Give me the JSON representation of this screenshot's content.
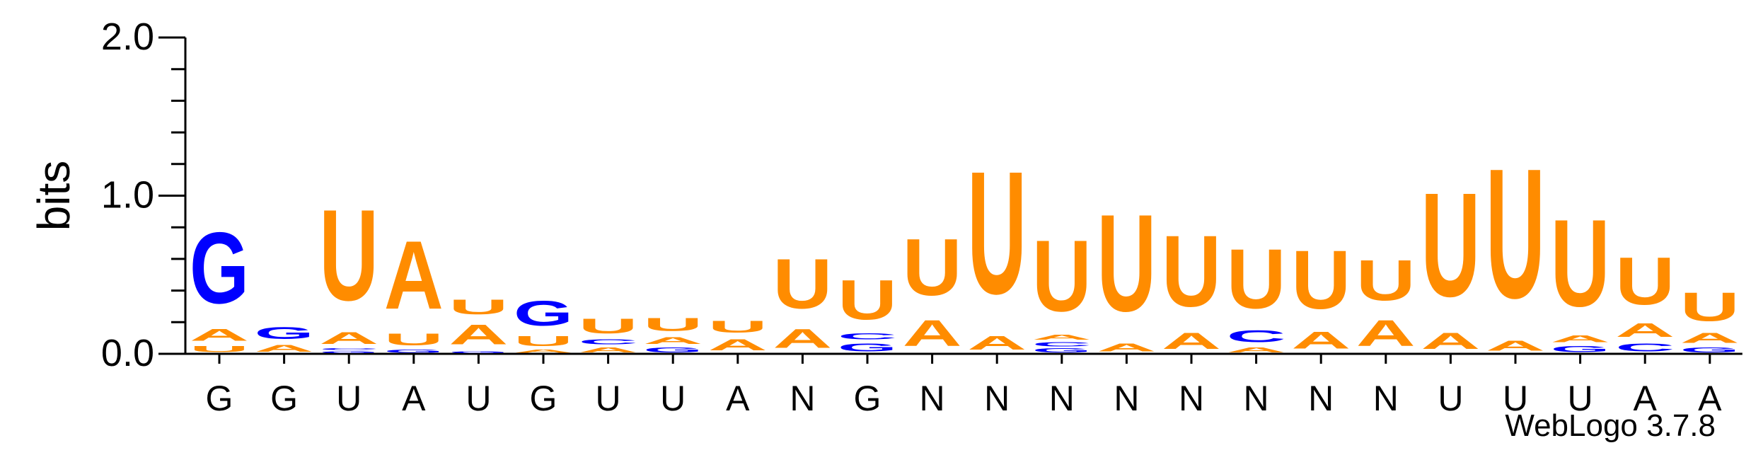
{
  "credit": "WebLogo 3.7.8",
  "colors": {
    "A": "#ff8c00",
    "U": "#ff8c00",
    "G": "#0000ff",
    "C": "#0000ff"
  },
  "chart_data": {
    "type": "sequence-logo",
    "ylabel": "bits",
    "ylim": [
      0,
      2.0
    ],
    "yticks": [
      "0.0",
      "1.0",
      "2.0"
    ],
    "x_labels": [
      "G",
      "G",
      "U",
      "A",
      "U",
      "G",
      "U",
      "U",
      "A",
      "N",
      "G",
      "N",
      "N",
      "N",
      "N",
      "N",
      "N",
      "N",
      "N",
      "U",
      "U",
      "U",
      "A",
      "A"
    ],
    "columns": [
      [
        {
          "b": "U",
          "h": 0.06
        },
        {
          "b": "A",
          "h": 0.12
        },
        {
          "b": "G",
          "h": 0.72
        }
      ],
      [
        {
          "b": "A",
          "h": 0.07
        },
        {
          "b": "G",
          "h": 0.12
        }
      ],
      [
        {
          "b": "G",
          "h": 0.02
        },
        {
          "b": "C",
          "h": 0.02
        },
        {
          "b": "A",
          "h": 0.12
        },
        {
          "b": "U",
          "h": 0.92
        }
      ],
      [
        {
          "b": "G",
          "h": 0.03
        },
        {
          "b": "U",
          "h": 0.12
        },
        {
          "b": "A",
          "h": 0.69
        }
      ],
      [
        {
          "b": "G",
          "h": 0.02
        },
        {
          "b": "A",
          "h": 0.2
        },
        {
          "b": "U",
          "h": 0.15
        }
      ],
      [
        {
          "b": "A",
          "h": 0.03
        },
        {
          "b": "U",
          "h": 0.1
        },
        {
          "b": "G",
          "h": 0.25
        }
      ],
      [
        {
          "b": "A",
          "h": 0.05
        },
        {
          "b": "C",
          "h": 0.05
        },
        {
          "b": "U",
          "h": 0.15
        }
      ],
      [
        {
          "b": "G",
          "h": 0.05
        },
        {
          "b": "A",
          "h": 0.07
        },
        {
          "b": "U",
          "h": 0.13
        }
      ],
      [
        {
          "b": "A",
          "h": 0.11
        },
        {
          "b": "U",
          "h": 0.12
        }
      ],
      [
        {
          "b": "A",
          "h": 0.19
        },
        {
          "b": "U",
          "h": 0.5
        }
      ],
      [
        {
          "b": "G",
          "h": 0.08
        },
        {
          "b": "C",
          "h": 0.06
        },
        {
          "b": "U",
          "h": 0.4
        }
      ],
      [
        {
          "b": "A",
          "h": 0.26
        },
        {
          "b": "U",
          "h": 0.57
        }
      ],
      [
        {
          "b": "A",
          "h": 0.14
        },
        {
          "b": "U",
          "h": 1.24
        }
      ],
      [
        {
          "b": "G",
          "h": 0.04
        },
        {
          "b": "C",
          "h": 0.04
        },
        {
          "b": "A",
          "h": 0.05
        },
        {
          "b": "U",
          "h": 0.72
        }
      ],
      [
        {
          "b": "A",
          "h": 0.08
        },
        {
          "b": "U",
          "h": 0.98
        }
      ],
      [
        {
          "b": "A",
          "h": 0.16
        },
        {
          "b": "U",
          "h": 0.72
        }
      ],
      [
        {
          "b": "A",
          "h": 0.05
        },
        {
          "b": "C",
          "h": 0.12
        },
        {
          "b": "U",
          "h": 0.6
        }
      ],
      [
        {
          "b": "A",
          "h": 0.17
        },
        {
          "b": "U",
          "h": 0.59
        }
      ],
      [
        {
          "b": "A",
          "h": 0.26
        },
        {
          "b": "U",
          "h": 0.41
        }
      ],
      [
        {
          "b": "A",
          "h": 0.16
        },
        {
          "b": "U",
          "h": 1.05
        }
      ],
      [
        {
          "b": "A",
          "h": 0.1
        },
        {
          "b": "U",
          "h": 1.31
        }
      ],
      [
        {
          "b": "G",
          "h": 0.06
        },
        {
          "b": "A",
          "h": 0.07
        },
        {
          "b": "U",
          "h": 0.88
        }
      ],
      [
        {
          "b": "C",
          "h": 0.08
        },
        {
          "b": "A",
          "h": 0.14
        },
        {
          "b": "U",
          "h": 0.48
        }
      ],
      [
        {
          "b": "G",
          "h": 0.05
        },
        {
          "b": "A",
          "h": 0.1
        },
        {
          "b": "U",
          "h": 0.29
        }
      ]
    ]
  }
}
